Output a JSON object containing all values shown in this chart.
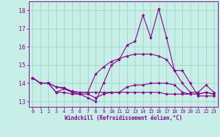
{
  "xlabel": "Windchill (Refroidissement éolien,°C)",
  "x_ticks": [
    0,
    1,
    2,
    3,
    4,
    5,
    6,
    7,
    8,
    9,
    10,
    11,
    12,
    13,
    14,
    15,
    16,
    17,
    18,
    19,
    20,
    21,
    22,
    23
  ],
  "y_ticks": [
    13,
    14,
    15,
    16,
    17,
    18
  ],
  "ylim": [
    12.7,
    18.5
  ],
  "xlim": [
    -0.5,
    23.5
  ],
  "bg_color": "#c8eee8",
  "grid_color": "#99ccbb",
  "line_color": "#880088",
  "lines": [
    [
      14.3,
      14.0,
      14.0,
      13.5,
      13.5,
      13.4,
      13.4,
      13.2,
      13.0,
      14.0,
      15.0,
      15.3,
      16.1,
      16.3,
      17.75,
      16.5,
      18.1,
      16.5,
      14.7,
      14.7,
      14.0,
      13.3,
      13.3,
      13.3
    ],
    [
      14.3,
      14.0,
      14.0,
      13.8,
      13.75,
      13.55,
      13.5,
      13.5,
      14.5,
      14.9,
      15.2,
      15.35,
      15.5,
      15.6,
      15.6,
      15.6,
      15.5,
      15.3,
      14.7,
      14.0,
      13.5,
      13.5,
      13.9,
      13.5
    ],
    [
      14.3,
      14.0,
      14.0,
      13.8,
      13.7,
      13.55,
      13.5,
      13.5,
      13.5,
      13.5,
      13.5,
      13.5,
      13.8,
      13.9,
      13.9,
      14.0,
      14.0,
      14.0,
      13.9,
      13.5,
      13.4,
      13.4,
      13.5,
      13.4
    ],
    [
      14.3,
      14.0,
      14.0,
      13.5,
      13.7,
      13.5,
      13.4,
      13.4,
      13.2,
      13.4,
      13.5,
      13.5,
      13.5,
      13.5,
      13.5,
      13.5,
      13.5,
      13.4,
      13.4,
      13.4,
      13.4,
      13.4,
      13.5,
      13.4
    ]
  ]
}
